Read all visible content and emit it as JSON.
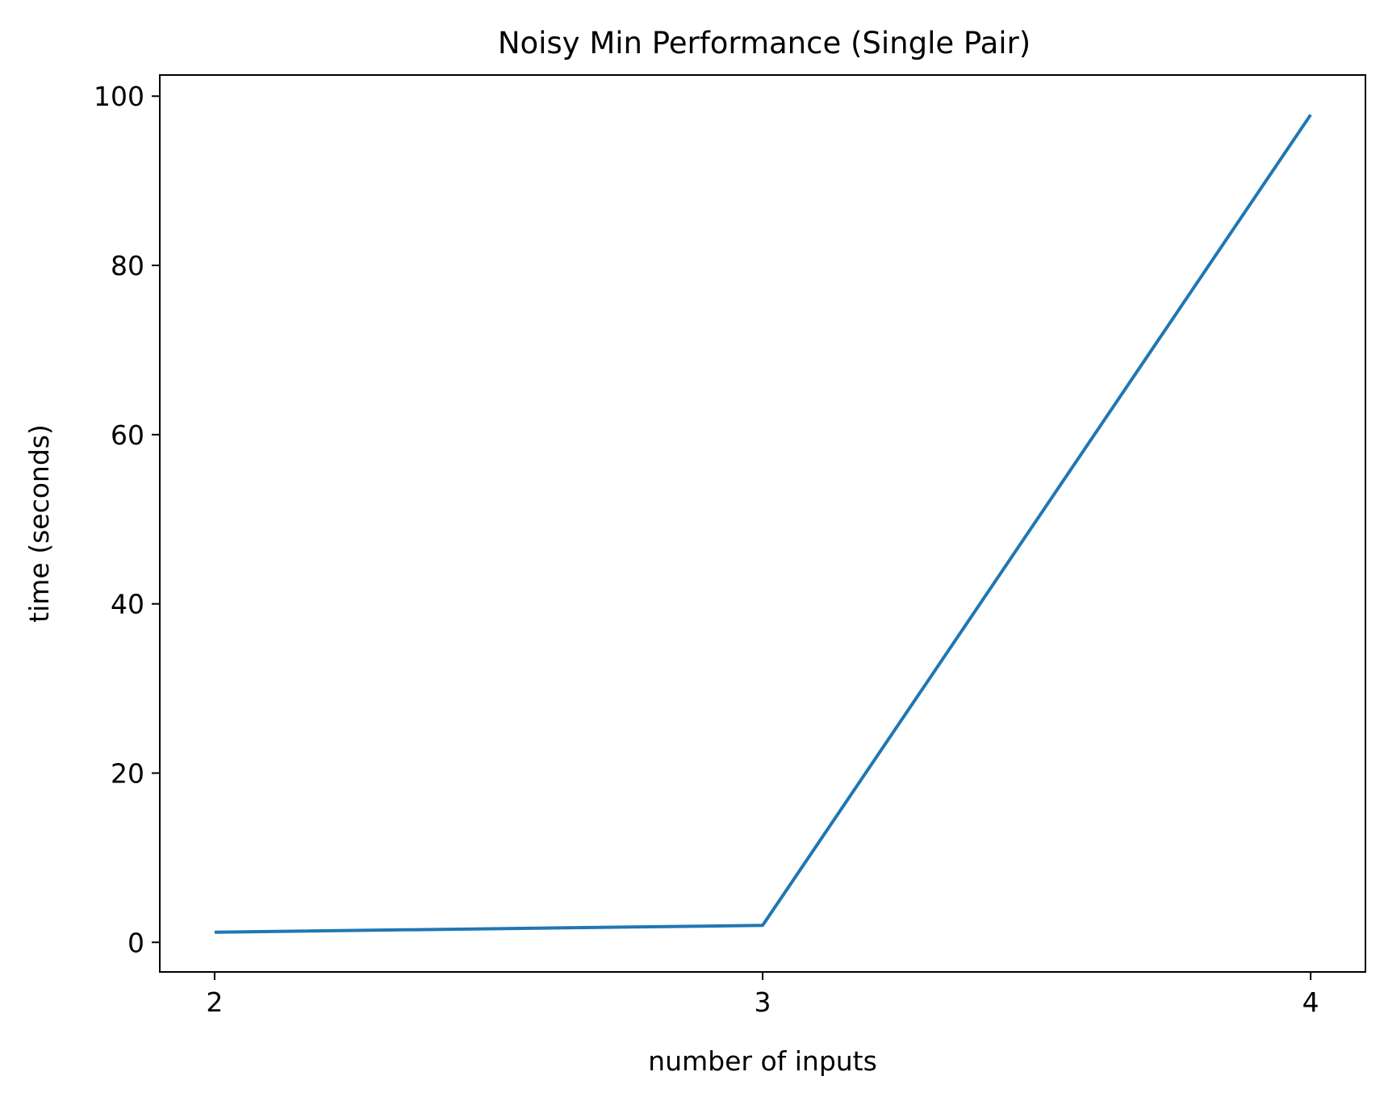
{
  "chart_data": {
    "type": "line",
    "title": "Noisy Min Performance (Single Pair)",
    "xlabel": "number of inputs",
    "ylabel": "time (seconds)",
    "xlim": [
      1.9,
      4.1
    ],
    "ylim": [
      -3.5,
      102.5
    ],
    "x_ticks": [
      2,
      3,
      4
    ],
    "y_ticks": [
      0,
      20,
      40,
      60,
      80,
      100
    ],
    "grid": false,
    "legend": "none",
    "series": [
      {
        "color": "#1f77b4",
        "x": [
          2,
          3,
          4
        ],
        "y": [
          1.2,
          2.0,
          97.8
        ]
      }
    ]
  }
}
